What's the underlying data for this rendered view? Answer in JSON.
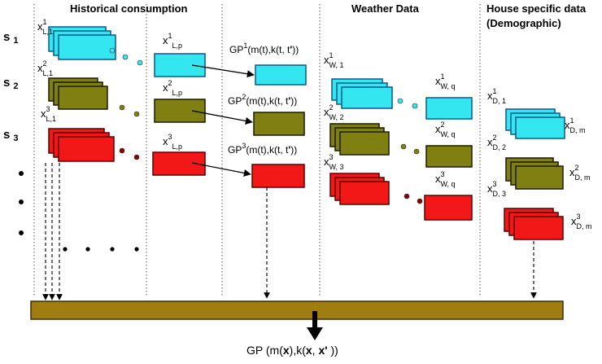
{
  "sections": {
    "historical": "Historical consumption",
    "weather": "Weather Data",
    "house_line1": "House specific data",
    "house_line2": "(Demographic)"
  },
  "series_labels": [
    "s",
    "s",
    "s"
  ],
  "series_subs": [
    "1",
    "2",
    "3"
  ],
  "colors": {
    "cyan": "#33e6f0",
    "olive": "#7f7f12",
    "red": "#f21818",
    "bar": "#a07d10"
  },
  "hist": {
    "x1": {
      "base": "x",
      "sup": "1",
      "sub": "L,1"
    },
    "x2": {
      "base": "x",
      "sup": "2",
      "sub": "L,1"
    },
    "x3": {
      "base": "x",
      "sup": "3",
      "sub": "L,1"
    },
    "p1": {
      "base": "x",
      "sup": "1",
      "sub": "L,p"
    },
    "p2": {
      "base": "x",
      "sup": "2",
      "sub": "L,p"
    },
    "p3": {
      "base": "x",
      "sup": "3",
      "sub": "L,p"
    }
  },
  "gp": {
    "g1": {
      "prefix": "GP",
      "sup": "1",
      "args": "(m(t),k(t, t",
      "prime": "'",
      "close": "))"
    },
    "g2": {
      "prefix": "GP",
      "sup": "2",
      "args": "(m(t),k(t, t",
      "prime": "'",
      "close": "))"
    },
    "g3": {
      "prefix": "GP",
      "sup": "3",
      "args": "(m(t),k(t, t",
      "prime": "'",
      "close": "))"
    }
  },
  "weather": {
    "w1": {
      "base": "x",
      "sup": "1",
      "sub": "W, 1"
    },
    "w2": {
      "base": "x",
      "sup": "2",
      "sub": "W, 2"
    },
    "w3": {
      "base": "x",
      "sup": "3",
      "sub": "W, 3"
    },
    "q1": {
      "base": "x",
      "sup": "1",
      "sub": "W, q"
    },
    "q2": {
      "base": "x",
      "sup": "2",
      "sub": "W, q"
    },
    "q3": {
      "base": "x",
      "sup": "3",
      "sub": "W, q"
    }
  },
  "house": {
    "d1": {
      "base": "x",
      "sup": "1",
      "sub": "D, 1"
    },
    "d2": {
      "base": "x",
      "sup": "2",
      "sub": "D, 2"
    },
    "d3": {
      "base": "x",
      "sup": "3",
      "sub": "D, 3"
    },
    "m1": {
      "base": "x",
      "sup": "1",
      "sub": "D, m"
    },
    "m2": {
      "base": "x",
      "sup": "2",
      "sub": "D, m"
    },
    "m3": {
      "base": "x",
      "sup": "3",
      "sub": "D, m"
    }
  },
  "bottom": {
    "prefix": "GP (m(",
    "x1": "x",
    "mid": "),k(",
    "x2": "x",
    "comma": ", ",
    "x3": "x",
    "prime": "'",
    "close": " ))"
  }
}
